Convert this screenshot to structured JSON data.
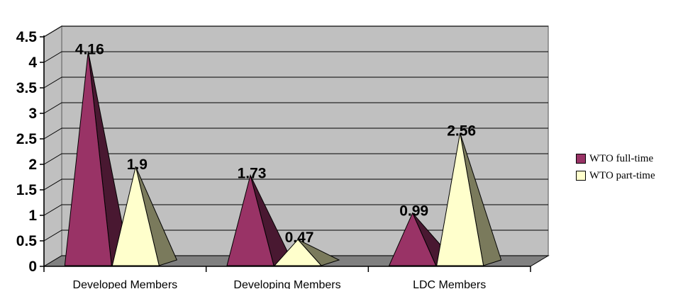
{
  "chart_data": {
    "type": "bar",
    "style": "3d-cone",
    "categories": [
      "Developed Members",
      "Developing Members",
      "LDC Members"
    ],
    "series": [
      {
        "name": "WTO full-time",
        "values": [
          4.16,
          1.73,
          0.99
        ],
        "color": "#993366"
      },
      {
        "name": "WTO part-time",
        "values": [
          1.9,
          0.47,
          2.56
        ],
        "color": "#FFFFCC"
      }
    ],
    "data_labels": {
      "WTO full-time": [
        "4.16",
        "1.73",
        "0.99"
      ],
      "WTO part-time": [
        "1.9",
        "0.47",
        "2.56"
      ]
    },
    "ylim": [
      0,
      4.5
    ],
    "yticks": [
      "0",
      "0.5",
      "1",
      "1.5",
      "2",
      "2.5",
      "3",
      "3.5",
      "4",
      "4.5"
    ],
    "grid": true,
    "legend_position": "right",
    "colors": {
      "wall": "#C0C0C0",
      "floor": "#808080",
      "gridline": "#000000"
    }
  }
}
